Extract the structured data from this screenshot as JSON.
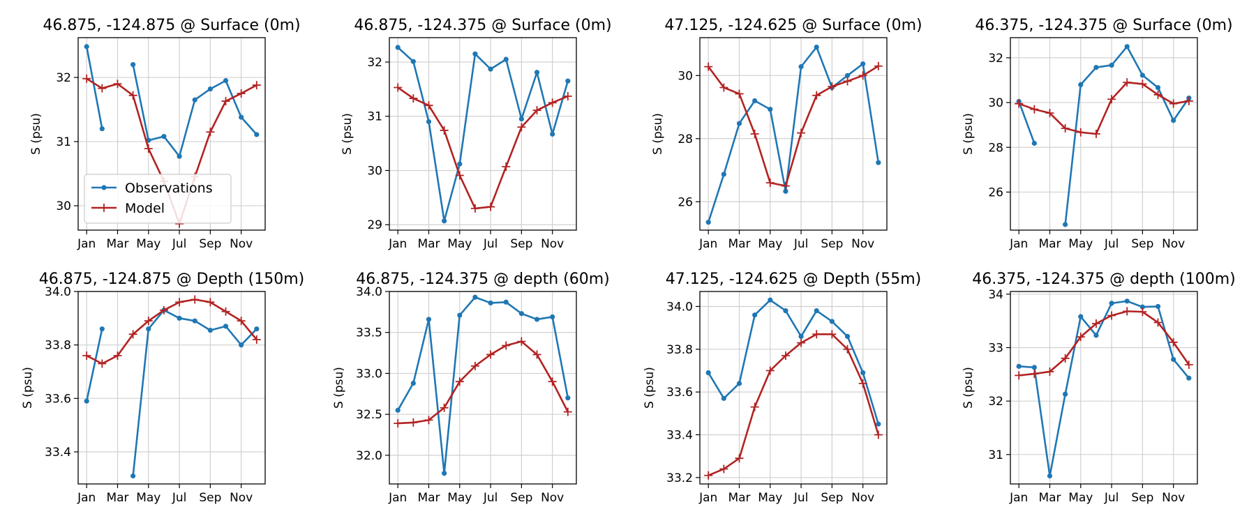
{
  "chart_data": [
    {
      "type": "line",
      "title": "46.875, -124.875 @ Surface (0m)",
      "xlabel": "",
      "ylabel": "S (psu)",
      "x_ticks": [
        "Jan",
        "Mar",
        "May",
        "Jul",
        "Sep",
        "Nov"
      ],
      "x_months": [
        1,
        2,
        3,
        4,
        5,
        6,
        7,
        8,
        9,
        10,
        11,
        12
      ],
      "ylim": [
        29.62,
        32.62
      ],
      "y_ticks": [
        30,
        31,
        32
      ],
      "legend": {
        "location": "lower-left"
      },
      "series": [
        {
          "name": "Observations",
          "color": "#1f77b4",
          "marker": "circle",
          "values": [
            32.48,
            31.2,
            null,
            32.2,
            31.02,
            31.08,
            30.77,
            31.65,
            31.82,
            31.95,
            31.38,
            31.11
          ]
        },
        {
          "name": "Model",
          "color": "#b22222",
          "marker": "plus",
          "values": [
            31.98,
            31.83,
            31.9,
            31.72,
            30.89,
            30.38,
            29.72,
            30.45,
            31.15,
            31.63,
            31.75,
            31.88
          ]
        }
      ]
    },
    {
      "type": "line",
      "title": "46.875, -124.375 @ Surface (0m)",
      "xlabel": "",
      "ylabel": "S (psu)",
      "x_ticks": [
        "Jan",
        "Mar",
        "May",
        "Jul",
        "Sep",
        "Nov"
      ],
      "x_months": [
        1,
        2,
        3,
        4,
        5,
        6,
        7,
        8,
        9,
        10,
        11,
        12
      ],
      "ylim": [
        28.9,
        32.45
      ],
      "y_ticks": [
        29,
        30,
        31,
        32
      ],
      "series": [
        {
          "name": "Observations",
          "color": "#1f77b4",
          "marker": "circle",
          "values": [
            32.27,
            32.01,
            30.9,
            29.07,
            30.12,
            32.15,
            31.87,
            32.05,
            30.95,
            31.81,
            30.67,
            31.65
          ]
        },
        {
          "name": "Model",
          "color": "#b22222",
          "marker": "plus",
          "values": [
            31.53,
            31.33,
            31.2,
            30.74,
            29.91,
            29.3,
            29.33,
            30.07,
            30.8,
            31.11,
            31.25,
            31.37
          ]
        }
      ]
    },
    {
      "type": "line",
      "title": "47.125, -124.625 @ Surface (0m)",
      "xlabel": "",
      "ylabel": "S (psu)",
      "x_ticks": [
        "Jan",
        "Mar",
        "May",
        "Jul",
        "Sep",
        "Nov"
      ],
      "x_months": [
        1,
        2,
        3,
        4,
        5,
        6,
        7,
        8,
        9,
        10,
        11,
        12
      ],
      "ylim": [
        25.1,
        31.2
      ],
      "y_ticks": [
        26,
        28,
        30
      ],
      "series": [
        {
          "name": "Observations",
          "color": "#1f77b4",
          "marker": "circle",
          "values": [
            25.35,
            26.87,
            28.48,
            29.2,
            28.93,
            26.33,
            30.28,
            30.9,
            29.62,
            30.0,
            30.37,
            27.24
          ]
        },
        {
          "name": "Model",
          "color": "#b22222",
          "marker": "plus",
          "values": [
            30.28,
            29.62,
            29.42,
            28.15,
            26.6,
            26.5,
            28.18,
            29.37,
            29.65,
            29.82,
            30.0,
            30.3
          ]
        }
      ]
    },
    {
      "type": "line",
      "title": "46.375, -124.375 @ Surface (0m)",
      "xlabel": "",
      "ylabel": "S (psu)",
      "x_ticks": [
        "Jan",
        "Mar",
        "May",
        "Jul",
        "Sep",
        "Nov"
      ],
      "x_months": [
        1,
        2,
        3,
        4,
        5,
        6,
        7,
        8,
        9,
        10,
        11,
        12
      ],
      "ylim": [
        24.3,
        32.9
      ],
      "y_ticks": [
        26,
        28,
        30,
        32
      ],
      "series": [
        {
          "name": "Observations",
          "color": "#1f77b4",
          "marker": "circle",
          "values": [
            30.05,
            28.18,
            null,
            24.55,
            30.8,
            31.57,
            31.67,
            32.5,
            31.22,
            30.67,
            29.2,
            30.2
          ]
        },
        {
          "name": "Model",
          "color": "#b22222",
          "marker": "plus",
          "values": [
            29.95,
            29.7,
            29.53,
            28.85,
            28.67,
            28.6,
            30.15,
            30.9,
            30.83,
            30.35,
            29.95,
            30.07
          ]
        }
      ]
    },
    {
      "type": "line",
      "title": "46.875, -124.875 @ Depth (150m)",
      "xlabel": "",
      "ylabel": "S (psu)",
      "x_ticks": [
        "Jan",
        "Mar",
        "May",
        "Jul",
        "Sep",
        "Nov"
      ],
      "x_months": [
        1,
        2,
        3,
        4,
        5,
        6,
        7,
        8,
        9,
        10,
        11,
        12
      ],
      "ylim": [
        33.28,
        34.0
      ],
      "y_ticks": [
        33.4,
        33.6,
        33.8,
        34.0
      ],
      "series": [
        {
          "name": "Observations",
          "color": "#1f77b4",
          "marker": "circle",
          "values": [
            33.59,
            33.86,
            null,
            33.31,
            33.86,
            33.93,
            33.9,
            33.89,
            33.855,
            33.87,
            33.8,
            33.86
          ]
        },
        {
          "name": "Model",
          "color": "#b22222",
          "marker": "plus",
          "values": [
            33.76,
            33.73,
            33.76,
            33.84,
            33.89,
            33.93,
            33.96,
            33.97,
            33.96,
            33.925,
            33.89,
            33.82
          ]
        }
      ]
    },
    {
      "type": "line",
      "title": "46.875, -124.375 @ depth (60m)",
      "xlabel": "",
      "ylabel": "S (psu)",
      "x_ticks": [
        "Jan",
        "Mar",
        "May",
        "Jul",
        "Sep",
        "Nov"
      ],
      "x_months": [
        1,
        2,
        3,
        4,
        5,
        6,
        7,
        8,
        9,
        10,
        11,
        12
      ],
      "ylim": [
        31.65,
        34.0
      ],
      "y_ticks": [
        32.0,
        32.5,
        33.0,
        33.5,
        34.0
      ],
      "series": [
        {
          "name": "Observations",
          "color": "#1f77b4",
          "marker": "circle",
          "values": [
            32.55,
            32.88,
            33.66,
            31.78,
            33.71,
            33.93,
            33.86,
            33.87,
            33.73,
            33.66,
            33.69,
            32.7
          ]
        },
        {
          "name": "Model",
          "color": "#b22222",
          "marker": "plus",
          "values": [
            32.39,
            32.4,
            32.43,
            32.58,
            32.9,
            33.09,
            33.23,
            33.34,
            33.39,
            33.23,
            32.9,
            32.53
          ]
        }
      ]
    },
    {
      "type": "line",
      "title": "47.125, -124.625 @ Depth (55m)",
      "xlabel": "",
      "ylabel": "S (psu)",
      "x_ticks": [
        "Jan",
        "Mar",
        "May",
        "Jul",
        "Sep",
        "Nov"
      ],
      "x_months": [
        1,
        2,
        3,
        4,
        5,
        6,
        7,
        8,
        9,
        10,
        11,
        12
      ],
      "ylim": [
        33.17,
        34.07
      ],
      "y_ticks": [
        33.2,
        33.4,
        33.6,
        33.8,
        34.0
      ],
      "series": [
        {
          "name": "Observations",
          "color": "#1f77b4",
          "marker": "circle",
          "values": [
            33.69,
            33.57,
            33.64,
            33.96,
            34.03,
            33.98,
            33.86,
            33.98,
            33.93,
            33.86,
            33.69,
            33.45
          ]
        },
        {
          "name": "Model",
          "color": "#b22222",
          "marker": "plus",
          "values": [
            33.21,
            33.24,
            33.29,
            33.53,
            33.7,
            33.77,
            33.83,
            33.87,
            33.87,
            33.8,
            33.64,
            33.4
          ]
        }
      ]
    },
    {
      "type": "line",
      "title": "46.375, -124.375 @ depth (100m)",
      "xlabel": "",
      "ylabel": "S (psu)",
      "x_ticks": [
        "Jan",
        "Mar",
        "May",
        "Jul",
        "Sep",
        "Nov"
      ],
      "x_months": [
        1,
        2,
        3,
        4,
        5,
        6,
        7,
        8,
        9,
        10,
        11,
        12
      ],
      "ylim": [
        30.45,
        34.05
      ],
      "y_ticks": [
        31,
        32,
        33,
        34
      ],
      "series": [
        {
          "name": "Observations",
          "color": "#1f77b4",
          "marker": "circle",
          "values": [
            32.65,
            32.63,
            30.6,
            32.13,
            33.58,
            33.23,
            33.83,
            33.87,
            33.76,
            33.77,
            32.78,
            32.43
          ]
        },
        {
          "name": "Model",
          "color": "#b22222",
          "marker": "plus",
          "values": [
            32.48,
            32.51,
            32.55,
            32.8,
            33.2,
            33.45,
            33.6,
            33.68,
            33.67,
            33.47,
            33.1,
            32.68
          ]
        }
      ]
    }
  ]
}
